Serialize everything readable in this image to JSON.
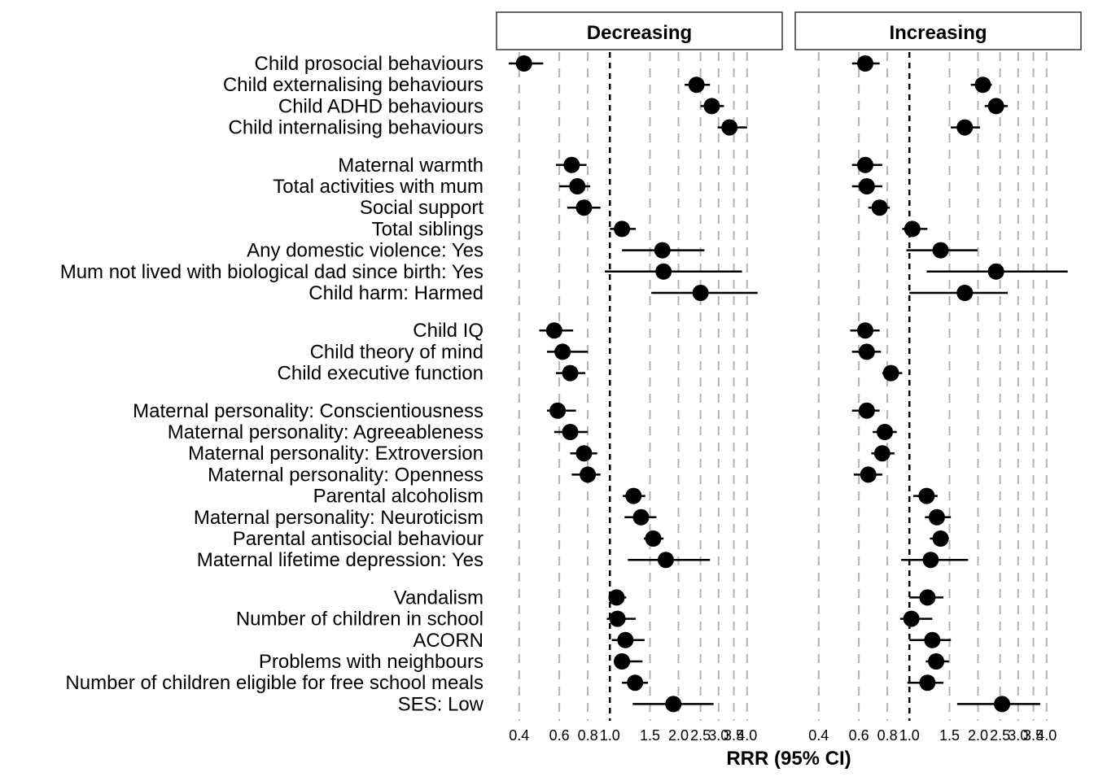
{
  "chart_data": {
    "type": "scatter",
    "subtype": "forest-plot",
    "xlabel": "RRR (95% CI)",
    "xscale": "log",
    "xlim": [
      0.36,
      5.3
    ],
    "reference_line": 1.0,
    "grid": "vertical dashed grey",
    "x_ticks": [
      0.4,
      0.6,
      0.8,
      1.0,
      1.5,
      2.0,
      2.5,
      3.0,
      3.5,
      4.0
    ],
    "x_tick_labels": [
      "0.4",
      "0.6",
      "0.8",
      "1.0",
      "1.5",
      "2.0",
      "2.5",
      "3.0",
      "3.5",
      "4.0"
    ],
    "panels": [
      "Decreasing",
      "Increasing"
    ],
    "groups": [
      [
        "Child prosocial behaviours",
        "Child externalising behaviours",
        "Child ADHD behaviours",
        "Child internalising behaviours"
      ],
      [
        "Maternal warmth",
        "Total activities with mum",
        "Social support",
        "Total siblings",
        "Any domestic violence: Yes",
        "Mum not lived with biological dad since birth: Yes",
        "Child harm: Harmed"
      ],
      [
        "Child IQ",
        "Child theory of mind",
        "Child executive function"
      ],
      [
        "Maternal personality: Conscientiousness",
        "Maternal personality: Agreeableness",
        "Maternal personality: Extroversion",
        "Maternal personality: Openness",
        "Parental alcoholism",
        "Maternal personality: Neuroticism",
        "Parental antisocial behaviour",
        "Maternal lifetime depression: Yes"
      ],
      [
        "Vandalism",
        "Number of children in school",
        "ACORN",
        "Problems with neighbours",
        "Number of children eligible for free school meals",
        "SES: Low"
      ]
    ],
    "series": [
      {
        "panel": "Decreasing",
        "est": [
          0.42,
          2.4,
          2.8,
          3.35,
          0.68,
          0.72,
          0.77,
          1.13,
          1.7,
          1.72,
          2.5,
          0.57,
          0.62,
          0.67,
          0.59,
          0.67,
          0.77,
          0.8,
          1.27,
          1.37,
          1.55,
          1.76,
          1.07,
          1.08,
          1.17,
          1.13,
          1.29,
          1.9
        ],
        "lo": [
          0.36,
          2.13,
          2.5,
          2.97,
          0.58,
          0.6,
          0.65,
          1.0,
          1.13,
          0.95,
          1.52,
          0.49,
          0.53,
          0.58,
          0.53,
          0.57,
          0.67,
          0.68,
          1.14,
          1.16,
          1.41,
          1.2,
          1.0,
          0.97,
          1.02,
          1.04,
          1.13,
          1.26
        ],
        "hi": [
          0.51,
          2.75,
          3.17,
          4.0,
          0.79,
          0.82,
          0.91,
          1.3,
          2.6,
          3.8,
          4.45,
          0.69,
          0.8,
          0.78,
          0.71,
          0.8,
          0.88,
          0.91,
          1.43,
          1.6,
          1.72,
          2.75,
          1.18,
          1.3,
          1.42,
          1.39,
          1.47,
          2.85
        ]
      },
      {
        "panel": "Increasing",
        "est": [
          0.64,
          2.1,
          2.4,
          1.75,
          0.64,
          0.65,
          0.74,
          1.03,
          1.37,
          2.4,
          1.75,
          0.64,
          0.65,
          0.83,
          0.65,
          0.78,
          0.76,
          0.66,
          1.19,
          1.32,
          1.37,
          1.24,
          1.2,
          1.02,
          1.26,
          1.31,
          1.2,
          2.55
        ],
        "lo": [
          0.56,
          1.86,
          2.14,
          1.52,
          0.56,
          0.56,
          0.66,
          0.93,
          0.97,
          1.19,
          1.0,
          0.55,
          0.56,
          0.76,
          0.56,
          0.69,
          0.68,
          0.57,
          1.04,
          1.17,
          1.23,
          0.92,
          1.0,
          0.91,
          1.0,
          1.18,
          0.98,
          1.62
        ],
        "hi": [
          0.74,
          2.3,
          2.7,
          2.04,
          0.76,
          0.76,
          0.82,
          1.2,
          1.99,
          4.95,
          2.7,
          0.74,
          0.75,
          0.93,
          0.74,
          0.88,
          0.86,
          0.76,
          1.33,
          1.52,
          1.49,
          1.81,
          1.41,
          1.26,
          1.52,
          1.49,
          1.41,
          3.75
        ]
      }
    ]
  }
}
